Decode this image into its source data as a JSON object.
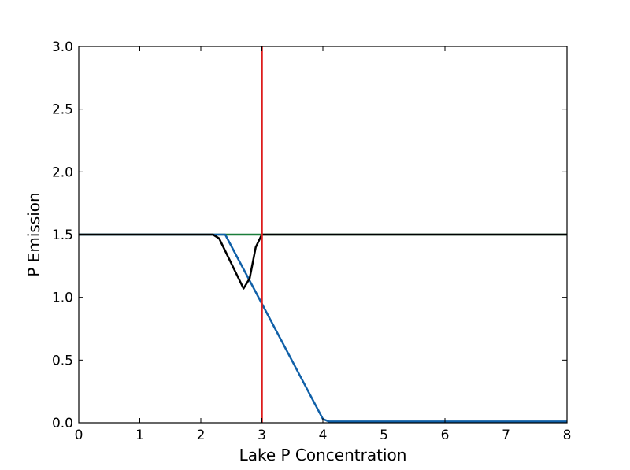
{
  "chart_data": {
    "type": "line",
    "title": "",
    "xlabel": "Lake P Concentration",
    "ylabel": "P Emission",
    "xlim": [
      0,
      8
    ],
    "ylim": [
      0,
      3
    ],
    "x_ticks": [
      "0",
      "1",
      "2",
      "3",
      "4",
      "5",
      "6",
      "7",
      "8"
    ],
    "y_ticks": [
      "0.0",
      "0.5",
      "1.0",
      "1.5",
      "2.0",
      "2.5",
      "3.0"
    ],
    "grid": false,
    "legend": "none",
    "vline": {
      "x": 3.0,
      "color": "#dd1c1c"
    },
    "series": [
      {
        "color": "#1b7d3a",
        "x": [
          0,
          3.0,
          8
        ],
        "y": [
          1.5,
          1.5,
          1.5
        ]
      },
      {
        "color": "#1060a8",
        "x": [
          0,
          2.4,
          3.0,
          4.0,
          4.1,
          8
        ],
        "y": [
          1.5,
          1.5,
          0.95,
          0.03,
          0.01,
          0.01
        ]
      },
      {
        "color": "#000000",
        "x": [
          0,
          2.2,
          2.3,
          2.7,
          2.8,
          2.9,
          3.0,
          8
        ],
        "y": [
          1.5,
          1.5,
          1.47,
          1.07,
          1.15,
          1.4,
          1.5,
          1.5
        ]
      }
    ]
  }
}
